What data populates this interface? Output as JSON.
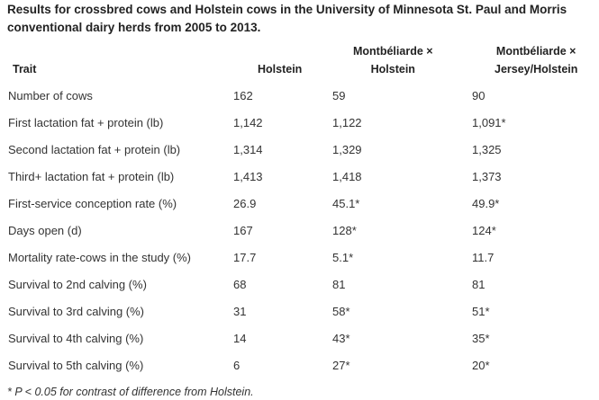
{
  "title": "Results for crossbred cows and Holstein cows in the University of Minnesota St. Paul and Morris conventional dairy herds from 2005 to 2013.",
  "headers": {
    "trait": "Trait",
    "holstein": "Holstein",
    "mh_line1": "Montbéliarde ×",
    "mh_line2": "Holstein",
    "mjh_line1": "Montbéliarde ×",
    "mjh_line2": "Jersey/Holstein"
  },
  "rows": [
    {
      "trait": "Number of cows",
      "holstein": "162",
      "mh": "59",
      "mjh": "90"
    },
    {
      "trait": "First lactation fat + protein (lb)",
      "holstein": "1,142",
      "mh": "1,122",
      "mjh": "1,091*"
    },
    {
      "trait": "Second lactation fat + protein (lb)",
      "holstein": "1,314",
      "mh": "1,329",
      "mjh": "1,325"
    },
    {
      "trait": "Third+ lactation fat + protein (lb)",
      "holstein": "1,413",
      "mh": "1,418",
      "mjh": "1,373"
    },
    {
      "trait": "First-service conception rate (%)",
      "holstein": "26.9",
      "mh": "45.1*",
      "mjh": "49.9*"
    },
    {
      "trait": "Days open (d)",
      "holstein": "167",
      "mh": "128*",
      "mjh": "124*"
    },
    {
      "trait": "Mortality rate-cows in the study (%)",
      "holstein": "17.7",
      "mh": "5.1*",
      "mjh": "11.7"
    },
    {
      "trait": "Survival to 2nd calving (%)",
      "holstein": "68",
      "mh": "81",
      "mjh": "81"
    },
    {
      "trait": "Survival to 3rd calving (%)",
      "holstein": "31",
      "mh": "58*",
      "mjh": "51*"
    },
    {
      "trait": "Survival to 4th calving (%)",
      "holstein": "14",
      "mh": "43*",
      "mjh": "35*"
    },
    {
      "trait": "Survival to 5th calving (%)",
      "holstein": "6",
      "mh": "27*",
      "mjh": "20*"
    }
  ],
  "footnote": "* P < 0.05 for contrast of difference from Holstein."
}
